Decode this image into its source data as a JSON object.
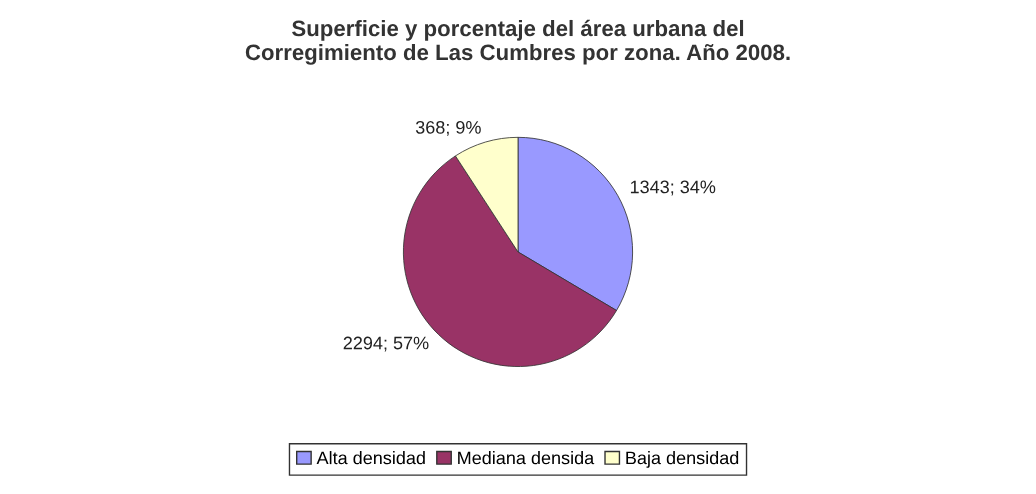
{
  "chart_data": {
    "type": "pie",
    "title": "Superficie y porcentaje del área urbana del\nCorregimiento de Las Cumbres por zona. Año 2008.",
    "categories": [
      "Alta densidad",
      "Mediana densida",
      "Baja densidad"
    ],
    "values": [
      1343,
      2294,
      368
    ],
    "value_labels": [
      "1343; 34%",
      "2294; 57%",
      "368; 9%"
    ],
    "colors": [
      "#9999ff",
      "#993366",
      "#ffffcc"
    ],
    "legend": "bottom"
  }
}
